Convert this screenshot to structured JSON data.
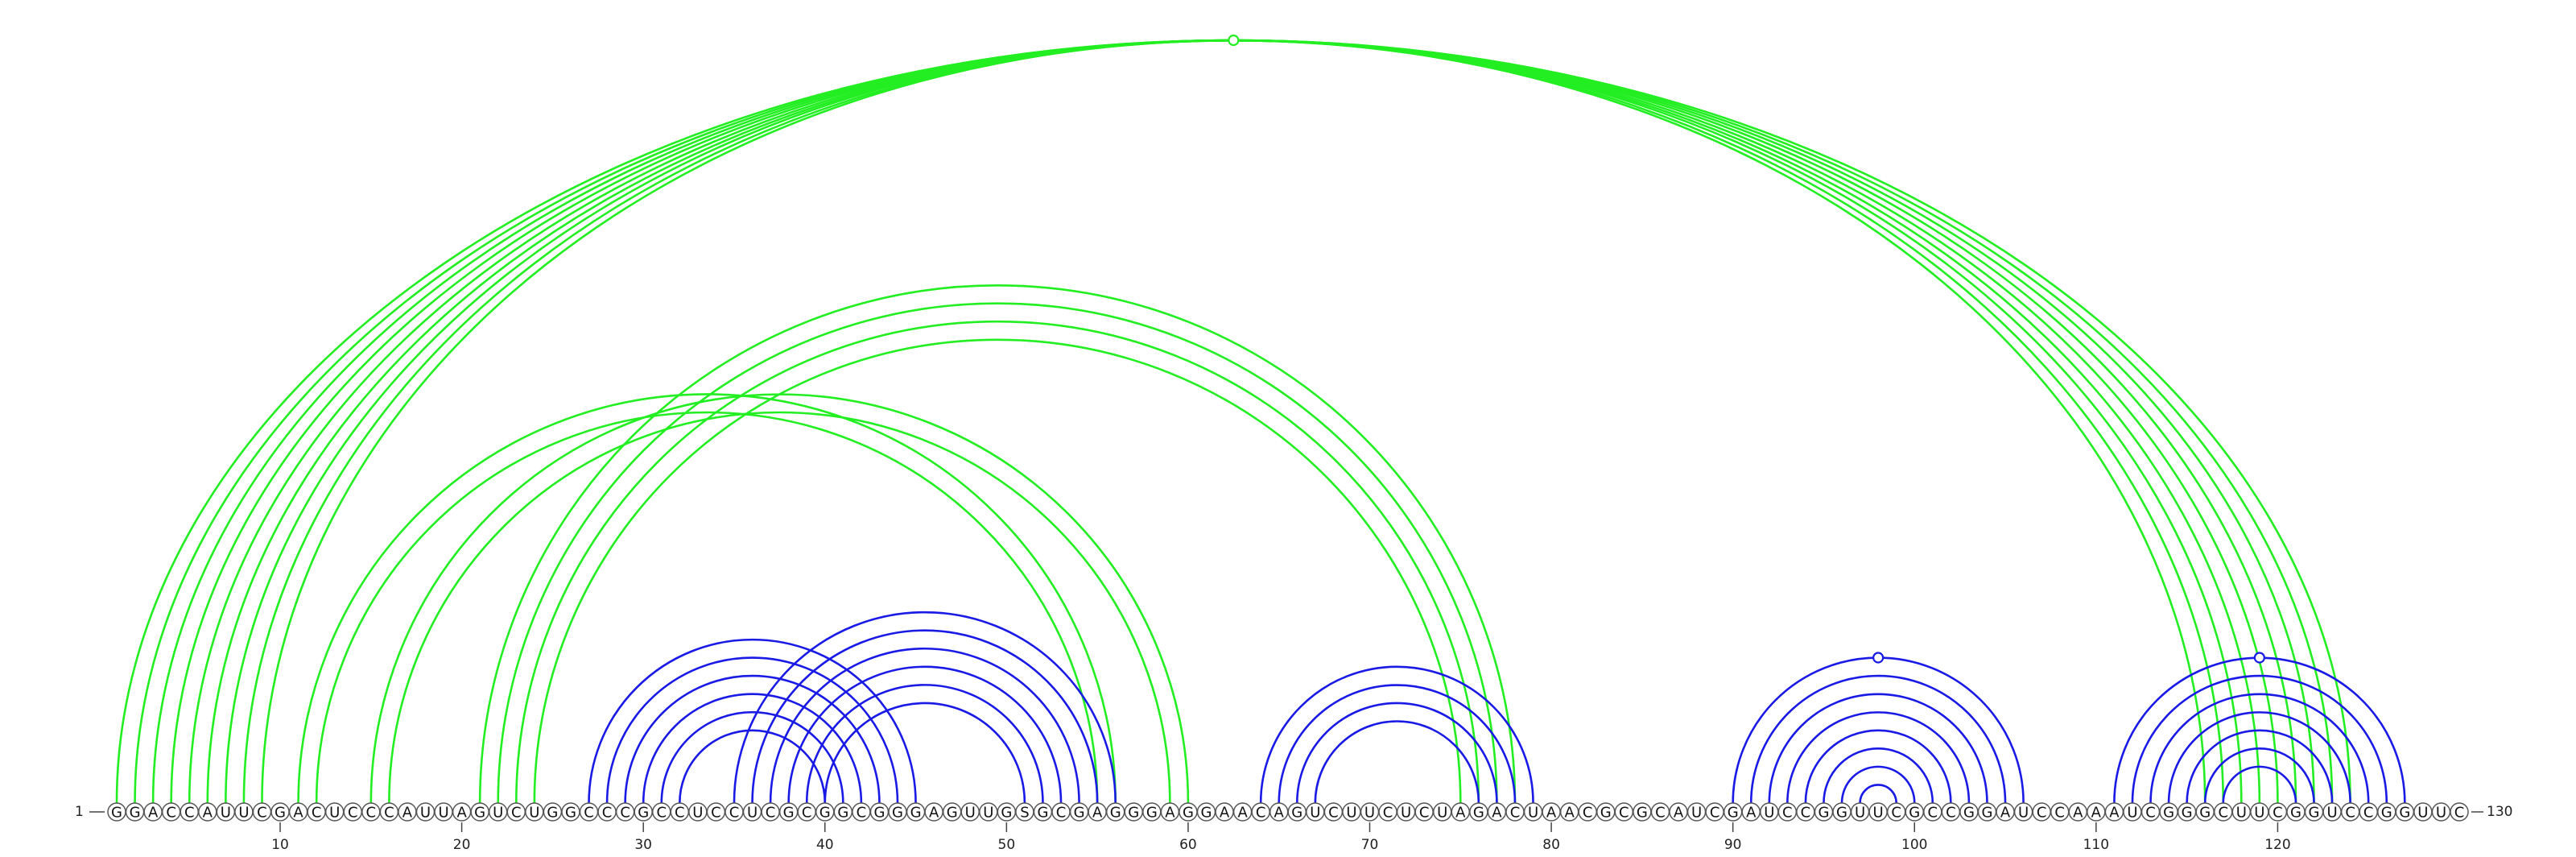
{
  "sequence": "GGACCAUUCGACUCCCAUUAGUCUGGCCCGCCUCCUCGCGGCGGGAGUUGSGCGAGGGAGGAACAGUCUUCUCUAGACUAACGCGCAUCGAUCCGGUUCGCCGGAUCCAAAUCGGGCUUCGGUCCGGUUC",
  "start_label": "1",
  "end_label": "130",
  "ticks": [
    "10",
    "20",
    "30",
    "40",
    "50",
    "60",
    "70",
    "80",
    "90",
    "100",
    "110",
    "120"
  ],
  "colors": {
    "green": "#22ee22",
    "blue": "#1a1ae6"
  },
  "arc_groups": [
    {
      "name": "long-range-green",
      "color": "green",
      "pairs": [
        [
          1,
          124
        ],
        [
          2,
          123
        ],
        [
          3,
          122
        ],
        [
          4,
          121
        ],
        [
          5,
          120
        ],
        [
          6,
          119
        ],
        [
          7,
          118
        ],
        [
          8,
          117
        ],
        [
          9,
          116
        ]
      ],
      "markers": [
        66
      ]
    },
    {
      "name": "mid-green-a",
      "color": "green",
      "pairs": [
        [
          11,
          56
        ],
        [
          12,
          55
        ],
        [
          15,
          60
        ],
        [
          16,
          59
        ]
      ]
    },
    {
      "name": "mid-green-b",
      "color": "green",
      "pairs": [
        [
          21,
          78
        ],
        [
          22,
          77
        ],
        [
          23,
          76
        ],
        [
          24,
          75
        ]
      ]
    },
    {
      "name": "blue-a",
      "color": "blue",
      "pairs": [
        [
          27,
          45
        ],
        [
          28,
          44
        ],
        [
          29,
          43
        ],
        [
          30,
          42
        ],
        [
          31,
          41
        ],
        [
          32,
          40
        ]
      ]
    },
    {
      "name": "blue-b",
      "color": "blue",
      "pairs": [
        [
          35,
          56
        ],
        [
          36,
          55
        ],
        [
          37,
          54
        ],
        [
          38,
          53
        ],
        [
          39,
          52
        ],
        [
          40,
          51
        ]
      ]
    },
    {
      "name": "blue-c",
      "color": "blue",
      "pairs": [
        [
          64,
          79
        ],
        [
          65,
          78
        ],
        [
          66,
          77
        ],
        [
          67,
          76
        ]
      ]
    },
    {
      "name": "blue-d",
      "color": "blue",
      "pairs": [
        [
          90,
          106
        ],
        [
          91,
          105
        ],
        [
          92,
          104
        ],
        [
          93,
          103
        ],
        [
          94,
          102
        ],
        [
          95,
          101
        ],
        [
          96,
          100
        ],
        [
          97,
          99
        ]
      ],
      "markers": [
        98
      ]
    },
    {
      "name": "blue-e",
      "color": "blue",
      "pairs": [
        [
          111,
          127
        ],
        [
          112,
          126
        ],
        [
          113,
          125
        ],
        [
          114,
          124
        ],
        [
          115,
          123
        ],
        [
          116,
          122
        ],
        [
          117,
          121
        ]
      ],
      "markers": [
        119
      ]
    }
  ]
}
